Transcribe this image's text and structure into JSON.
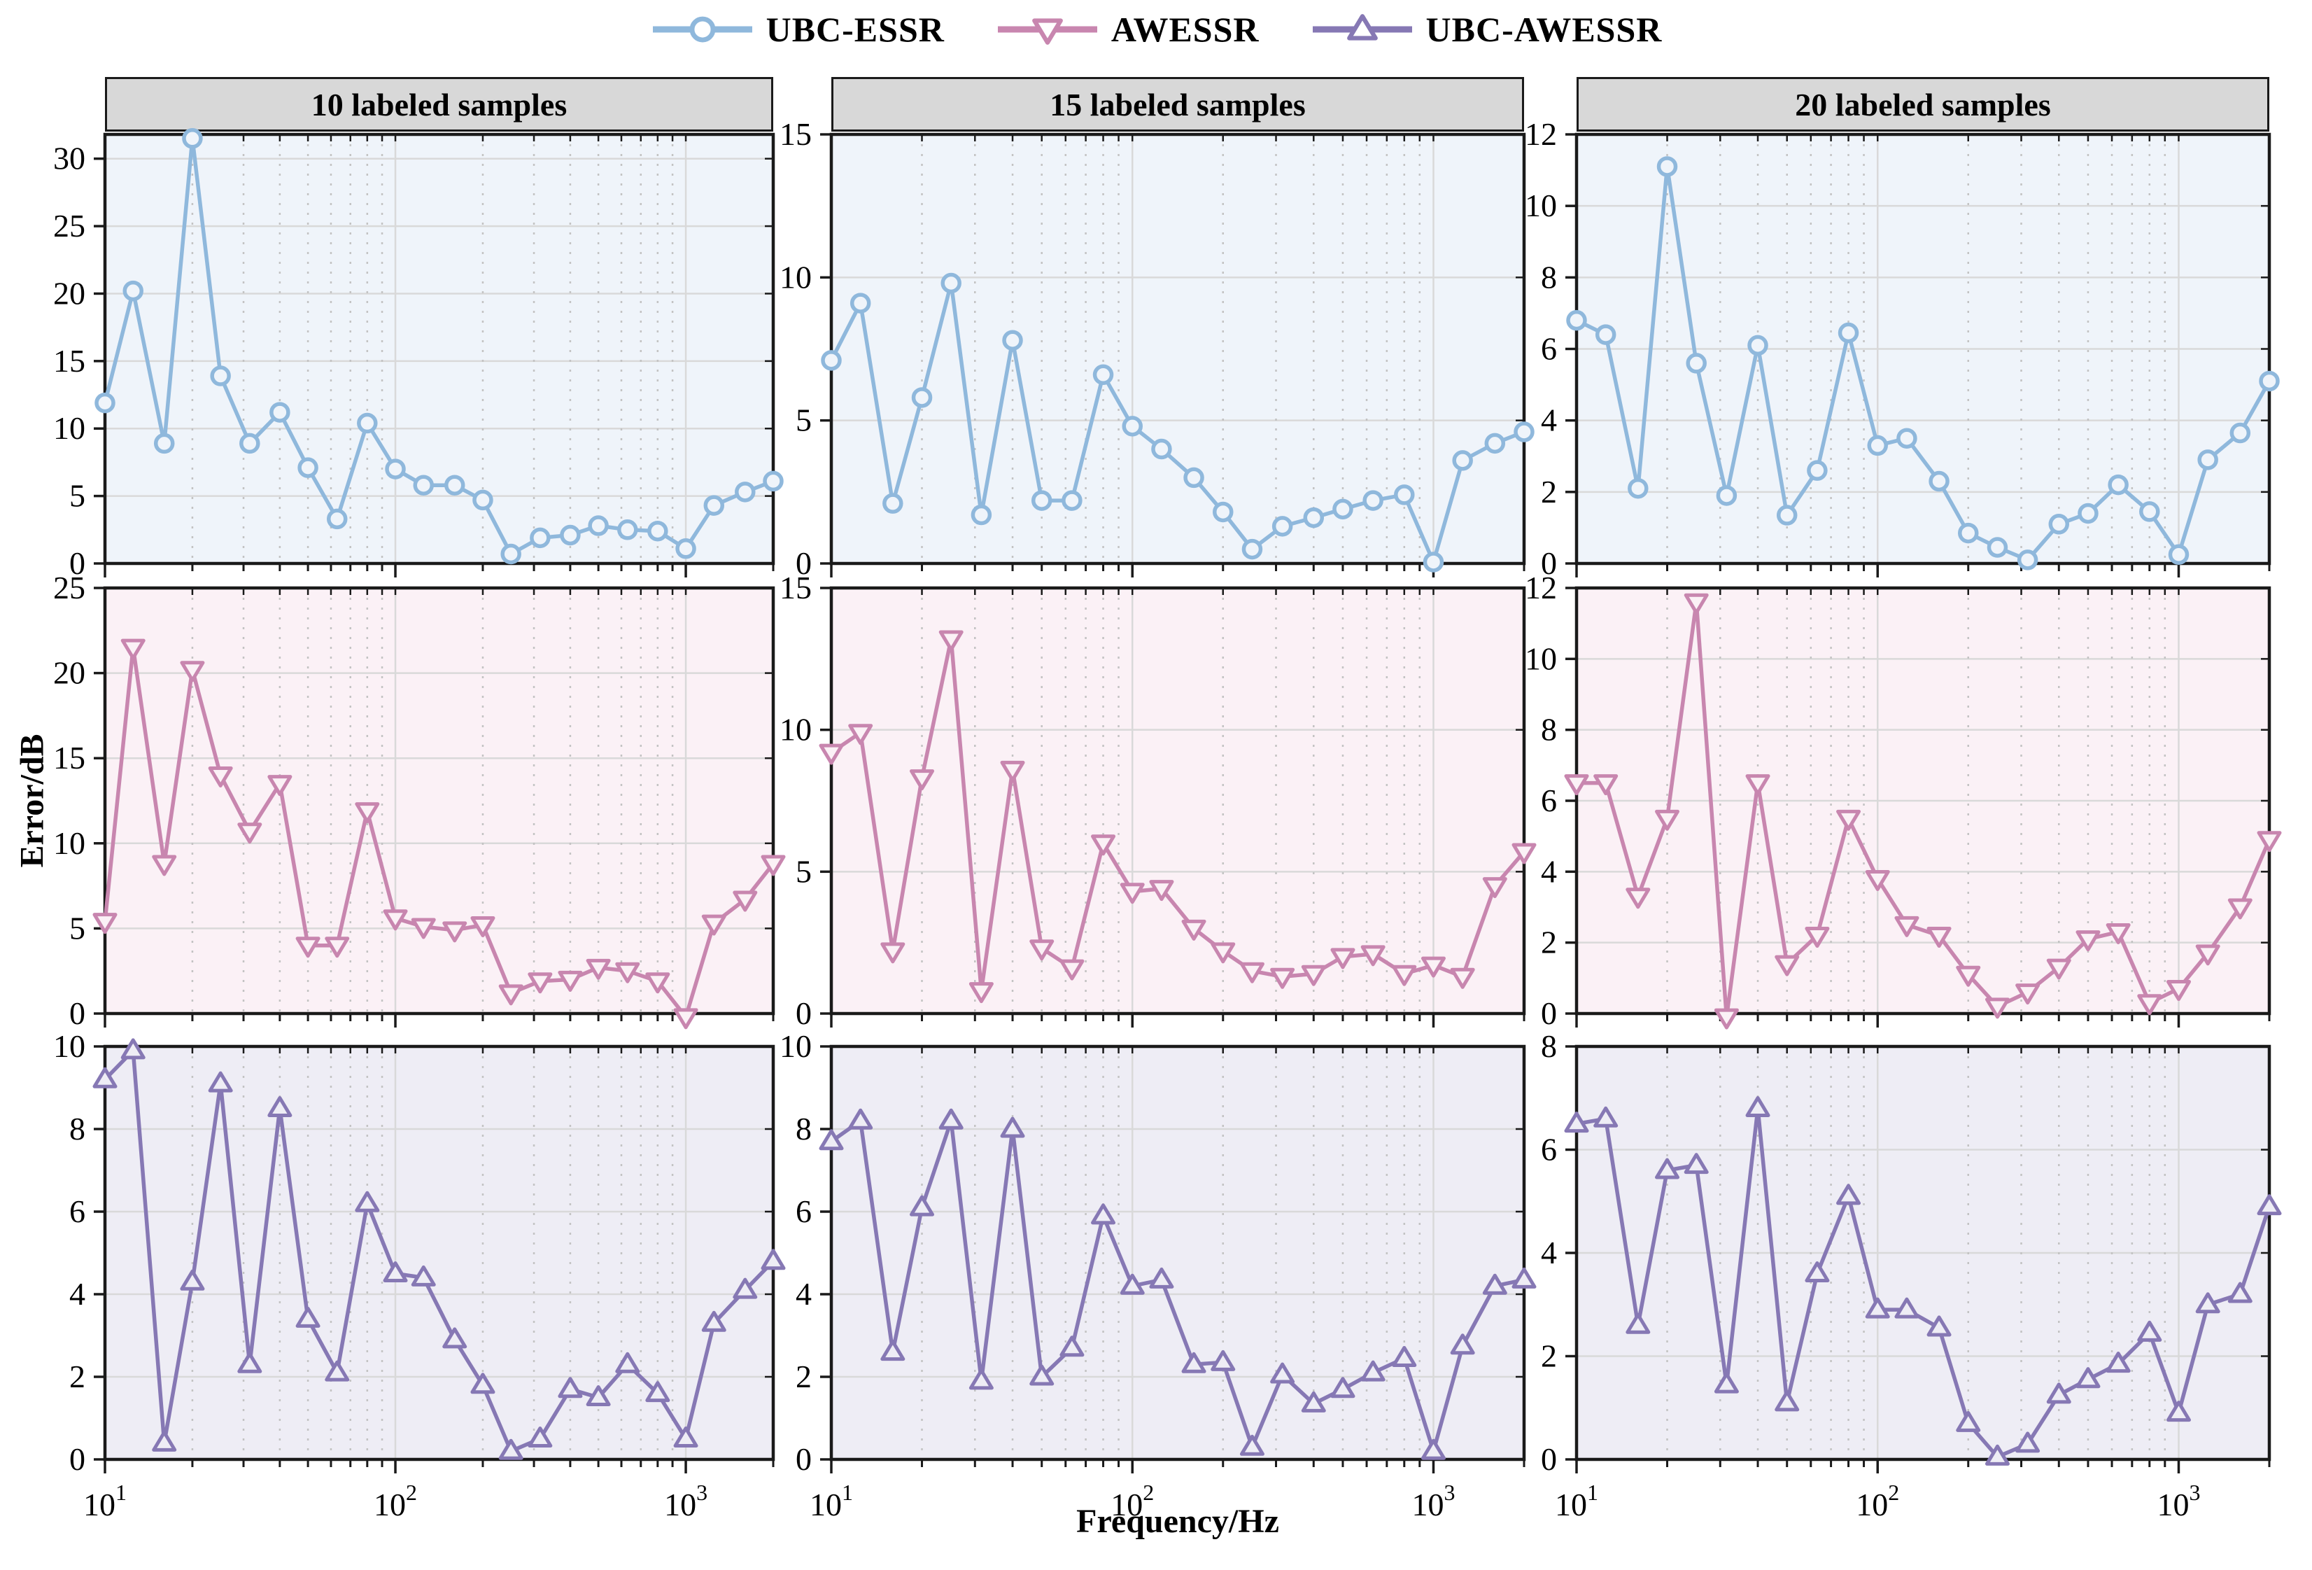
{
  "legend": {
    "items": [
      {
        "label": "UBC-ESSR",
        "marker": "circle",
        "color": "#8FB8DC",
        "panel_bg": "#EFF4FA"
      },
      {
        "label": "AWESSR",
        "marker": "triangle-down",
        "color": "#C886AF",
        "panel_bg": "#FBF1F6"
      },
      {
        "label": "UBC-AWESSR",
        "marker": "triangle-up",
        "color": "#8678B4",
        "panel_bg": "#EEEDF5"
      }
    ]
  },
  "headers": [
    "10 labeled samples",
    "15 labeled samples",
    "20 labeled samples"
  ],
  "axis": {
    "xlabel": "Frequency/Hz",
    "ylabel": "Error/dB",
    "x_tick_base": "10",
    "x_tick_exponents": [
      "1",
      "2",
      "3"
    ],
    "x_tick_values": [
      10,
      100,
      1000
    ]
  },
  "style": {
    "header_bg": "#D8D8D8",
    "axis_color": "#1a1a1a",
    "grid_major": "#d9d9d9",
    "grid_minor": "#c3c3c3",
    "text_color": "#000000"
  },
  "chart_data": {
    "type": "line",
    "x_scale": "log",
    "xlim": [
      10,
      2000
    ],
    "grid": true,
    "x": [
      10,
      12.5,
      16,
      20,
      25,
      31.5,
      40,
      50,
      63,
      80,
      100,
      125,
      160,
      200,
      250,
      315,
      400,
      500,
      630,
      800,
      1000,
      1250,
      1600,
      2000
    ],
    "minor_grid_x": [
      20,
      30,
      40,
      50,
      60,
      70,
      80,
      90,
      200,
      300,
      400,
      500,
      600,
      700,
      800,
      900,
      2000
    ],
    "major_grid_x": [
      100,
      1000
    ],
    "panels": [
      {
        "row": 0,
        "col": 0,
        "series": "UBC-ESSR",
        "title": "10 labeled samples",
        "ylim": [
          0,
          31.8
        ],
        "yticks": [
          0,
          5,
          10,
          15,
          20,
          25,
          30
        ],
        "values": [
          11.9,
          20.2,
          8.9,
          31.5,
          13.9,
          8.9,
          11.2,
          7.1,
          3.3,
          10.4,
          7.0,
          5.8,
          5.8,
          4.7,
          0.7,
          1.9,
          2.1,
          2.8,
          2.5,
          2.4,
          1.1,
          4.3,
          5.3,
          6.1
        ]
      },
      {
        "row": 0,
        "col": 1,
        "series": "UBC-ESSR",
        "title": "15 labeled samples",
        "ylim": [
          0,
          15
        ],
        "yticks": [
          0,
          5,
          10,
          15
        ],
        "values": [
          7.1,
          9.1,
          2.1,
          5.8,
          9.8,
          1.7,
          7.8,
          2.2,
          2.2,
          6.6,
          4.8,
          4.0,
          3.0,
          1.8,
          0.5,
          1.3,
          1.6,
          1.9,
          2.2,
          2.4,
          0.05,
          3.6,
          4.2,
          4.6
        ]
      },
      {
        "row": 0,
        "col": 2,
        "series": "UBC-ESSR",
        "title": "20 labeled samples",
        "ylim": [
          0,
          12
        ],
        "yticks": [
          0,
          2,
          4,
          6,
          8,
          10,
          12
        ],
        "values": [
          6.8,
          6.4,
          2.1,
          11.1,
          5.6,
          1.9,
          6.1,
          1.35,
          2.6,
          6.45,
          3.3,
          3.5,
          2.3,
          0.85,
          0.45,
          0.1,
          1.1,
          1.4,
          2.2,
          1.45,
          0.25,
          2.9,
          3.65,
          5.1
        ]
      },
      {
        "row": 1,
        "col": 0,
        "series": "AWESSR",
        "title": "10 labeled samples",
        "ylim": [
          0,
          25
        ],
        "yticks": [
          0,
          5,
          10,
          15,
          20,
          25
        ],
        "values": [
          5.4,
          21.5,
          8.8,
          20.2,
          14.0,
          10.7,
          13.5,
          4.0,
          4.0,
          11.9,
          5.6,
          5.1,
          4.9,
          5.2,
          1.2,
          1.9,
          2.0,
          2.7,
          2.5,
          1.9,
          -0.2,
          5.3,
          6.7,
          8.8
        ]
      },
      {
        "row": 1,
        "col": 1,
        "series": "AWESSR",
        "title": "15 labeled samples",
        "ylim": [
          0,
          15
        ],
        "yticks": [
          0,
          5,
          10,
          15
        ],
        "values": [
          9.2,
          9.9,
          2.2,
          8.3,
          13.2,
          0.8,
          8.6,
          2.3,
          1.6,
          6.0,
          4.3,
          4.4,
          3.0,
          2.2,
          1.5,
          1.3,
          1.4,
          2.0,
          2.1,
          1.4,
          1.7,
          1.3,
          4.5,
          5.7
        ]
      },
      {
        "row": 1,
        "col": 2,
        "series": "AWESSR",
        "title": "20 labeled samples",
        "ylim": [
          0,
          12
        ],
        "yticks": [
          0,
          2,
          4,
          6,
          8,
          10,
          12
        ],
        "values": [
          6.5,
          6.5,
          3.3,
          5.5,
          11.6,
          -0.1,
          6.5,
          1.4,
          2.2,
          5.5,
          3.8,
          2.5,
          2.2,
          1.1,
          0.2,
          0.6,
          1.3,
          2.1,
          2.3,
          0.3,
          0.7,
          1.7,
          3.0,
          4.9
        ]
      },
      {
        "row": 2,
        "col": 0,
        "series": "UBC-AWESSR",
        "title": "10 labeled samples",
        "ylim": [
          0,
          10
        ],
        "yticks": [
          0,
          2,
          4,
          6,
          8,
          10
        ],
        "values": [
          9.2,
          9.9,
          0.4,
          4.3,
          9.1,
          2.3,
          8.5,
          3.4,
          2.1,
          6.2,
          4.5,
          4.4,
          2.9,
          1.8,
          0.2,
          0.5,
          1.7,
          1.5,
          2.3,
          1.6,
          0.5,
          3.3,
          4.1,
          4.8
        ]
      },
      {
        "row": 2,
        "col": 1,
        "series": "UBC-AWESSR",
        "title": "15 labeled samples",
        "ylim": [
          0,
          10
        ],
        "yticks": [
          0,
          2,
          4,
          6,
          8,
          10
        ],
        "values": [
          7.7,
          8.2,
          2.6,
          6.1,
          8.2,
          1.9,
          8.0,
          2.0,
          2.7,
          5.9,
          4.2,
          4.35,
          2.3,
          2.35,
          0.3,
          2.05,
          1.35,
          1.7,
          2.1,
          2.45,
          0.2,
          2.75,
          4.2,
          4.35
        ]
      },
      {
        "row": 2,
        "col": 2,
        "series": "UBC-AWESSR",
        "title": "20 labeled samples",
        "ylim": [
          0,
          8
        ],
        "yticks": [
          0,
          2,
          4,
          6,
          8
        ],
        "values": [
          6.5,
          6.6,
          2.6,
          5.6,
          5.7,
          1.45,
          6.8,
          1.1,
          3.6,
          5.1,
          2.9,
          2.9,
          2.55,
          0.7,
          0.05,
          0.3,
          1.25,
          1.55,
          1.85,
          2.45,
          0.9,
          3.0,
          3.2,
          4.9
        ]
      }
    ]
  }
}
